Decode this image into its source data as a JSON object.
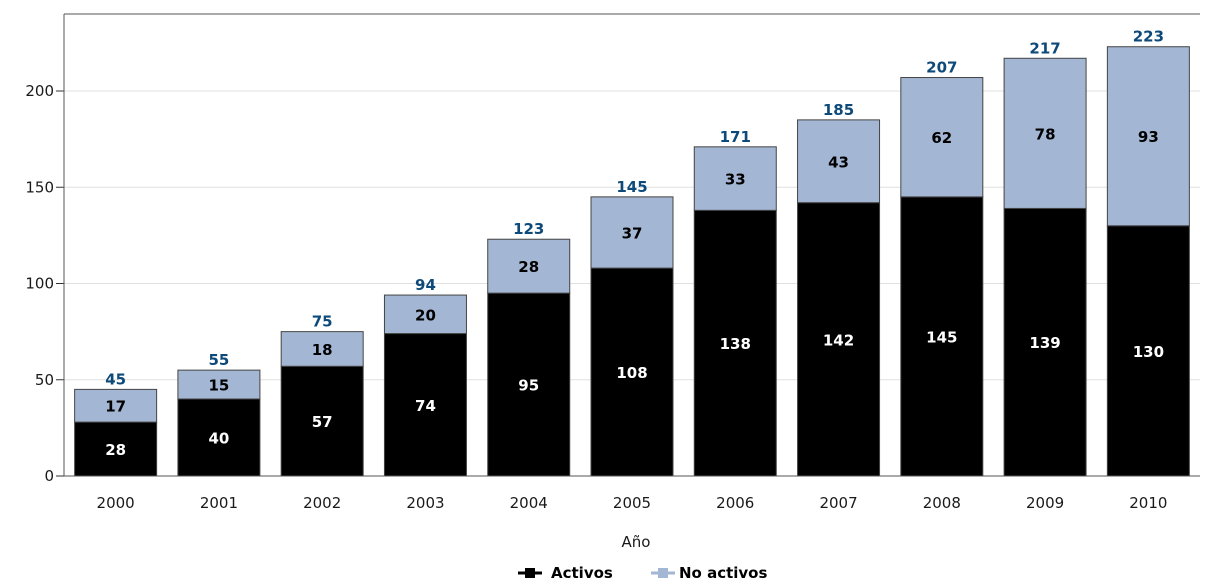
{
  "chart_data": {
    "type": "bar",
    "stacked": true,
    "title": "",
    "xlabel": "Año",
    "ylabel": "",
    "ylim": [
      0,
      240
    ],
    "yticks": [
      0,
      50,
      100,
      150,
      200
    ],
    "grid": true,
    "legend_position": "bottom",
    "categories": [
      "2000",
      "2001",
      "2002",
      "2003",
      "2004",
      "2005",
      "2006",
      "2007",
      "2008",
      "2009",
      "2010"
    ],
    "series": [
      {
        "name": "Activos",
        "color": "#000000",
        "label_color": "#ffffff",
        "values": [
          28,
          40,
          57,
          74,
          95,
          108,
          138,
          142,
          145,
          139,
          130
        ]
      },
      {
        "name": "No activos",
        "color": "#a3b6d3",
        "label_color": "#000000",
        "values": [
          17,
          15,
          18,
          20,
          28,
          37,
          33,
          43,
          62,
          78,
          93
        ]
      }
    ],
    "totals": [
      45,
      55,
      75,
      94,
      123,
      145,
      171,
      185,
      207,
      217,
      223
    ],
    "total_color": "#0d4a7a"
  }
}
